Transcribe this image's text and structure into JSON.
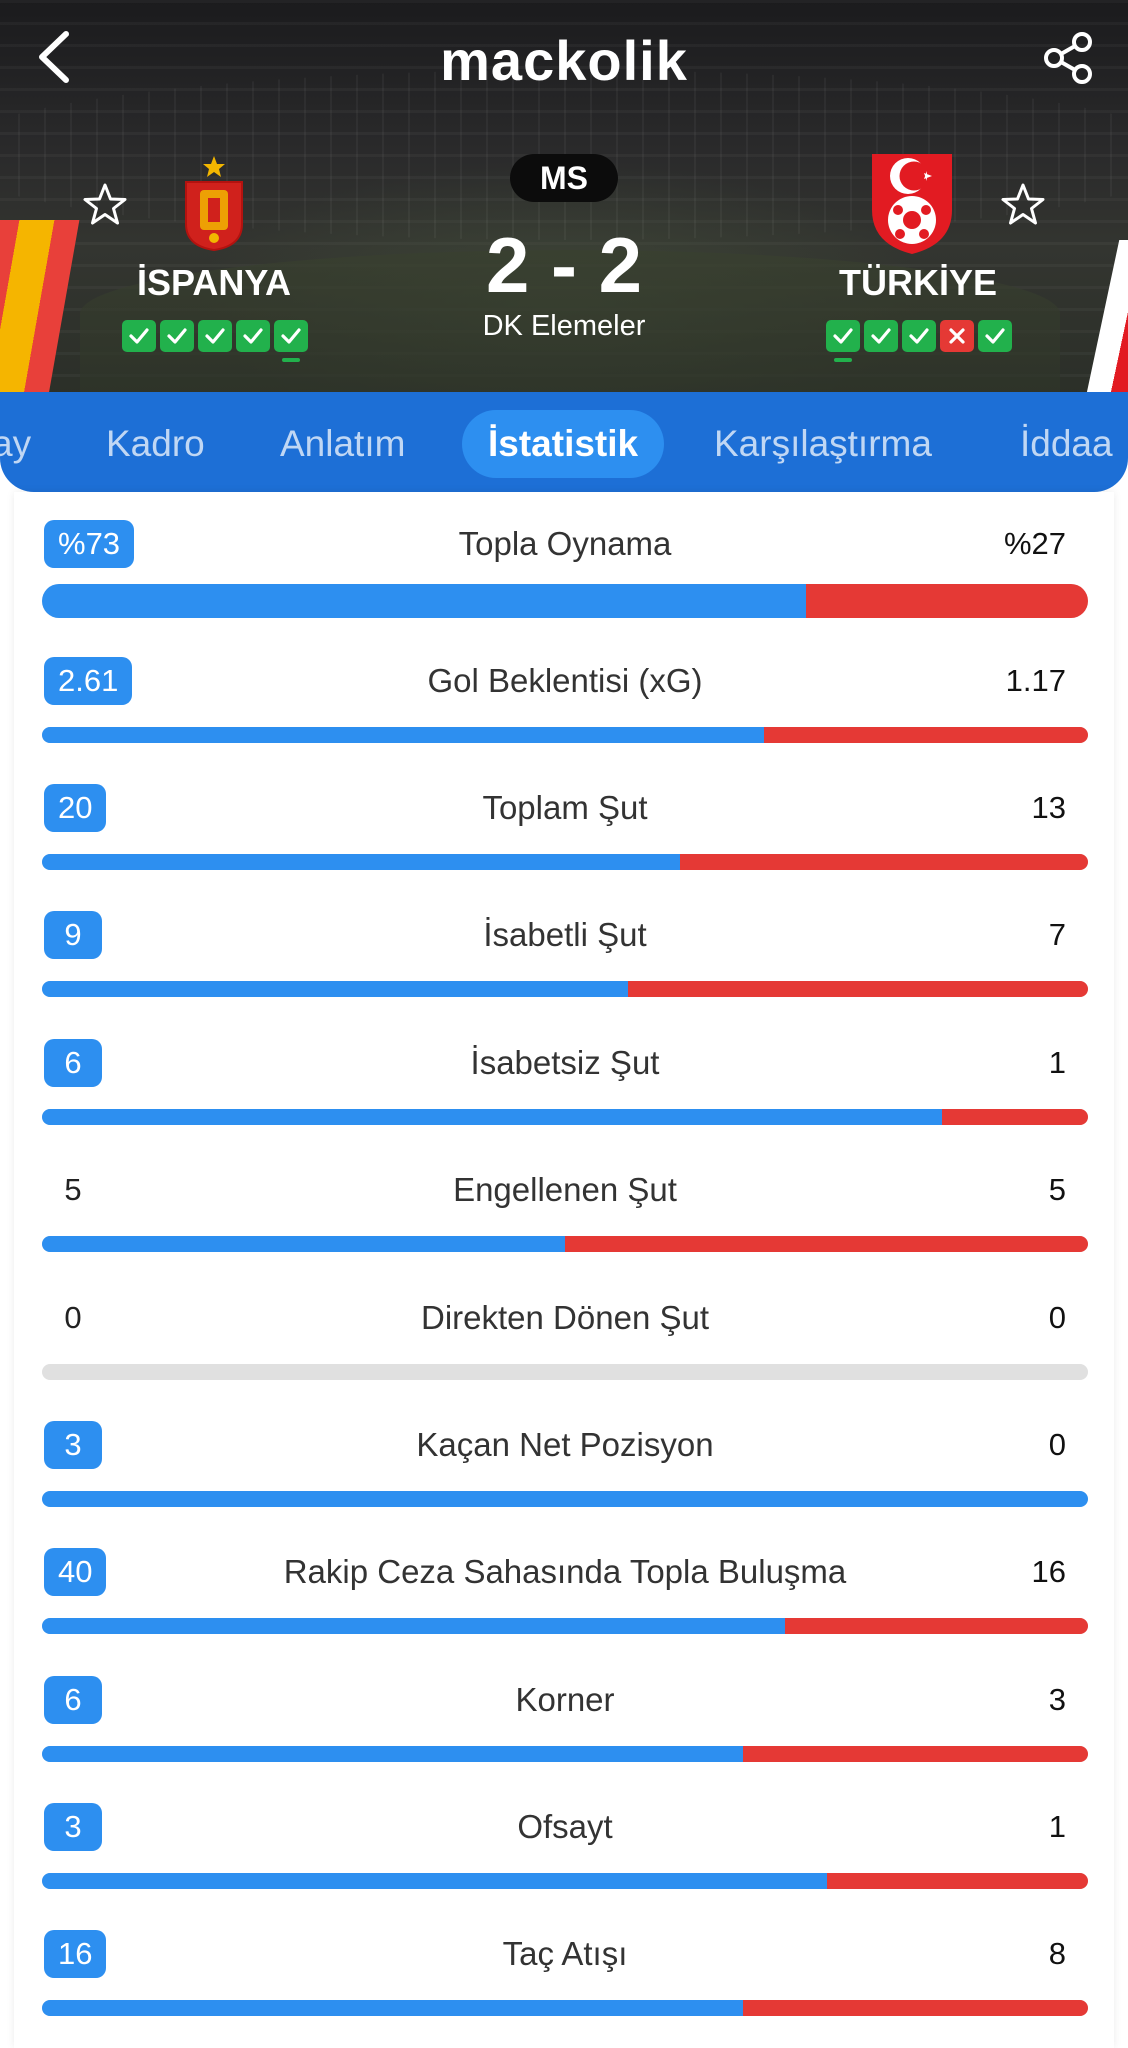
{
  "header": {
    "logo": "mackolik",
    "status": "MS",
    "score": "2 - 2",
    "competition": "DK Elemeler",
    "home": {
      "name": "İSPANYA",
      "form": [
        "W",
        "W",
        "W",
        "W",
        "W"
      ],
      "form_marker_index": 4
    },
    "away": {
      "name": "TÜRKİYE",
      "form": [
        "W",
        "W",
        "W",
        "L",
        "W"
      ],
      "form_marker_index": 0
    }
  },
  "tabs": [
    {
      "label": "ay"
    },
    {
      "label": "Kadro"
    },
    {
      "label": "Anlatım"
    },
    {
      "label": "İstatistik",
      "active": true
    },
    {
      "label": "Karşılaştırma"
    },
    {
      "label": "İddaa"
    }
  ],
  "colors": {
    "home": "#2d8ff0",
    "away": "#e53935",
    "empty": "#e0e0e0"
  },
  "stats": [
    {
      "label": "Topla Oynama",
      "home": "%73",
      "away": "%27",
      "home_share": 0.73,
      "home_badge": true
    },
    {
      "label": "Gol Beklentisi (xG)",
      "home": "2.61",
      "away": "1.17",
      "home_share": 0.69,
      "home_badge": true
    },
    {
      "label": "Toplam Şut",
      "home": "20",
      "away": "13",
      "home_share": 0.61,
      "home_badge": true
    },
    {
      "label": "İsabetli Şut",
      "home": "9",
      "away": "7",
      "home_share": 0.56,
      "home_badge": true
    },
    {
      "label": "İsabetsiz Şut",
      "home": "6",
      "away": "1",
      "home_share": 0.86,
      "home_badge": true
    },
    {
      "label": "Engellenen Şut",
      "home": "5",
      "away": "5",
      "home_share": 0.5,
      "home_badge": false
    },
    {
      "label": "Direkten Dönen Şut",
      "home": "0",
      "away": "0",
      "home_share": null,
      "home_badge": false
    },
    {
      "label": "Kaçan Net Pozisyon",
      "home": "3",
      "away": "0",
      "home_share": 1.0,
      "home_badge": true
    },
    {
      "label": "Rakip Ceza Sahasında Topla Buluşma",
      "home": "40",
      "away": "16",
      "home_share": 0.71,
      "home_badge": true
    },
    {
      "label": "Korner",
      "home": "6",
      "away": "3",
      "home_share": 0.67,
      "home_badge": true
    },
    {
      "label": "Ofsayt",
      "home": "3",
      "away": "1",
      "home_share": 0.75,
      "home_badge": true
    },
    {
      "label": "Taç Atışı",
      "home": "16",
      "away": "8",
      "home_share": 0.67,
      "home_badge": true
    }
  ]
}
